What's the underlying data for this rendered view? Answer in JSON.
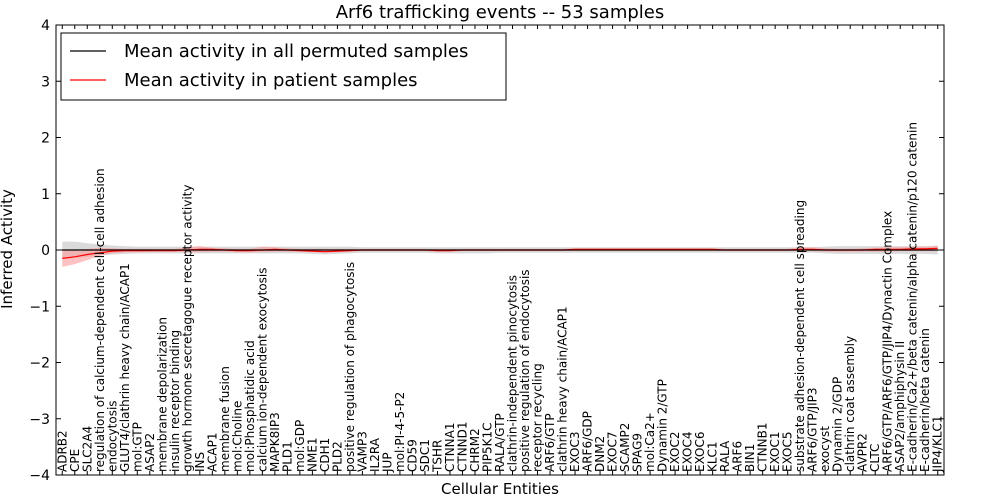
{
  "chart_data": {
    "type": "line",
    "title": "Arf6 trafficking events -- 53 samples",
    "xlabel": "Cellular Entities",
    "ylabel": "Inferred Activity",
    "ylim": [
      -4,
      4
    ],
    "yticks": [
      "4",
      "3",
      "2",
      "1",
      "0",
      "−1",
      "−2",
      "−3",
      "−4"
    ],
    "legend_position": "top-left",
    "grid": false,
    "categories": [
      "ADRB2",
      "CPE",
      "SLC2A4",
      "regulation of calcium-dependent cell-cell adhesion",
      "endocytosis",
      "GLUT4/clathrin heavy chain/ACAP1",
      "mol:GTP",
      "ASAP2",
      "membrane depolarization",
      "insulin receptor binding",
      "growth hormone secretagogue receptor activity",
      "INS",
      "ACAP1",
      "membrane fusion",
      "mol:Choline",
      "mol:Phosphatidic acid",
      "calcium ion-dependent exocytosis",
      "MAPK8IP3",
      "PLD1",
      "mol:GDP",
      "NME1",
      "CDH1",
      "PLD2",
      "positive regulation of phagocytosis",
      "VAMP3",
      "IL2RA",
      "JUP",
      "mol:PI-4-5-P2",
      "CD59",
      "SDC1",
      "TSHR",
      "CTNNA1",
      "CTNND1",
      "CHRM2",
      "PIP5K1C",
      "RALA/GTP",
      "clathrin-independent pinocytosis",
      "positive regulation of endocytosis",
      "receptor recycling",
      "ARF6/GTP",
      "clathrin heavy chain/ACAP1",
      "EXOC3",
      "ARF6/GDP",
      "DNM2",
      "EXOC7",
      "SCAMP2",
      "SPAG9",
      "mol:Ca2+",
      "Dynamin 2/GTP",
      "EXOC2",
      "EXOC4",
      "EXOC6",
      "KLC1",
      "RALA",
      "ARF6",
      "BIN1",
      "CTNNB1",
      "EXOC1",
      "EXOC5",
      "substrate adhesion-dependent cell spreading",
      "ARF6/GTP/JIP3",
      "exocyst",
      "Dynamin 2/GDP",
      "clathrin coat assembly",
      "AVPR2",
      "CLTC",
      "ARF6/GTP/ARF6/GTP/JIP4/Dynactin Complex",
      "ASAP2/amphiphysin II",
      "E-cadherin/Ca2+/beta catenin/alpha catenin/p120 catenin",
      "E-cadherin/beta catenin",
      "JIP4/KLC1"
    ],
    "series": [
      {
        "name": "Mean activity in all permuted samples",
        "color": "#000000",
        "values": [
          0,
          0,
          0,
          0,
          0,
          0,
          0,
          0,
          0,
          0,
          0,
          0,
          0,
          0,
          0,
          0,
          0,
          0,
          0,
          0,
          0,
          0,
          0,
          0,
          0,
          0,
          0,
          0,
          0,
          0,
          0,
          0,
          0,
          0,
          0,
          0,
          0,
          0,
          0,
          0,
          0,
          0,
          0,
          0,
          0,
          0,
          0,
          0,
          0,
          0,
          0,
          0,
          0,
          0,
          0,
          0,
          0,
          0,
          0,
          0,
          0,
          0,
          0,
          0,
          0,
          0,
          0,
          0,
          0,
          0,
          0
        ],
        "band_color": "#bbbbbb",
        "band_low": [
          -0.15,
          -0.15,
          -0.12,
          -0.1,
          -0.08,
          -0.07,
          -0.06,
          -0.06,
          -0.06,
          -0.06,
          -0.06,
          -0.06,
          -0.06,
          -0.06,
          -0.06,
          -0.06,
          -0.06,
          -0.06,
          -0.06,
          -0.06,
          -0.07,
          -0.08,
          -0.07,
          -0.06,
          -0.05,
          -0.05,
          -0.05,
          -0.05,
          -0.05,
          -0.05,
          -0.06,
          -0.06,
          -0.06,
          -0.06,
          -0.06,
          -0.05,
          -0.05,
          -0.05,
          -0.05,
          -0.05,
          -0.05,
          -0.05,
          -0.05,
          -0.05,
          -0.05,
          -0.05,
          -0.05,
          -0.05,
          -0.05,
          -0.05,
          -0.05,
          -0.05,
          -0.05,
          -0.05,
          -0.05,
          -0.05,
          -0.05,
          -0.05,
          -0.05,
          -0.05,
          -0.05,
          -0.06,
          -0.07,
          -0.07,
          -0.07,
          -0.07,
          -0.07,
          -0.07,
          -0.07,
          -0.07,
          -0.08
        ],
        "band_high": [
          0.15,
          0.15,
          0.12,
          0.1,
          0.08,
          0.07,
          0.06,
          0.06,
          0.06,
          0.06,
          0.06,
          0.06,
          0.06,
          0.06,
          0.06,
          0.06,
          0.06,
          0.06,
          0.06,
          0.06,
          0.06,
          0.06,
          0.06,
          0.06,
          0.05,
          0.05,
          0.05,
          0.05,
          0.05,
          0.05,
          0.05,
          0.05,
          0.05,
          0.05,
          0.05,
          0.05,
          0.05,
          0.05,
          0.05,
          0.05,
          0.05,
          0.05,
          0.05,
          0.05,
          0.05,
          0.05,
          0.05,
          0.05,
          0.05,
          0.05,
          0.05,
          0.05,
          0.05,
          0.05,
          0.05,
          0.05,
          0.05,
          0.05,
          0.05,
          0.05,
          0.05,
          0.06,
          0.07,
          0.07,
          0.07,
          0.07,
          0.07,
          0.07,
          0.07,
          0.07,
          0.08
        ]
      },
      {
        "name": "Mean activity in patient samples",
        "color": "#ff0000",
        "values": [
          -0.15,
          -0.12,
          -0.08,
          -0.05,
          -0.02,
          -0.01,
          -0.01,
          -0.01,
          -0.01,
          -0.01,
          0.0,
          0.01,
          0.01,
          0.0,
          -0.01,
          -0.01,
          0.0,
          0.01,
          0.0,
          -0.01,
          -0.02,
          -0.03,
          -0.02,
          -0.01,
          0.0,
          0.0,
          0.0,
          0.0,
          0.0,
          0.0,
          -0.01,
          -0.01,
          0.0,
          0.0,
          0.0,
          0.0,
          0.0,
          0.0,
          0.0,
          0.0,
          0.0,
          0.01,
          0.01,
          0.01,
          0.01,
          0.01,
          0.01,
          0.01,
          0.01,
          0.01,
          0.01,
          0.01,
          0.01,
          0.0,
          0.0,
          0.0,
          0.0,
          0.0,
          0.0,
          0.01,
          0.01,
          0.0,
          0.0,
          0.0,
          0.0,
          0.01,
          0.01,
          0.01,
          0.02,
          0.02,
          0.03
        ],
        "band_color": "#ff9999",
        "band_low": [
          -0.3,
          -0.25,
          -0.18,
          -0.1,
          -0.06,
          -0.04,
          -0.04,
          -0.03,
          -0.03,
          -0.03,
          -0.04,
          -0.04,
          -0.03,
          -0.03,
          -0.04,
          -0.04,
          -0.04,
          -0.03,
          -0.03,
          -0.03,
          -0.04,
          -0.05,
          -0.04,
          -0.03,
          -0.02,
          -0.02,
          -0.02,
          -0.02,
          -0.02,
          -0.02,
          -0.03,
          -0.03,
          -0.02,
          -0.02,
          -0.02,
          -0.02,
          -0.02,
          -0.02,
          -0.02,
          -0.02,
          -0.02,
          -0.02,
          -0.02,
          -0.02,
          -0.02,
          -0.02,
          -0.02,
          -0.02,
          -0.02,
          -0.02,
          -0.02,
          -0.02,
          -0.02,
          -0.02,
          -0.02,
          -0.02,
          -0.02,
          -0.02,
          -0.02,
          -0.02,
          -0.02,
          -0.03,
          -0.03,
          -0.03,
          -0.03,
          -0.03,
          -0.03,
          -0.02,
          -0.02,
          -0.02,
          -0.02
        ],
        "band_high": [
          0.0,
          0.0,
          0.02,
          0.04,
          0.03,
          0.02,
          0.02,
          0.02,
          0.02,
          0.02,
          0.05,
          0.07,
          0.04,
          0.03,
          0.02,
          0.02,
          0.06,
          0.05,
          0.03,
          0.02,
          0.02,
          0.02,
          0.02,
          0.02,
          0.02,
          0.02,
          0.02,
          0.02,
          0.02,
          0.02,
          0.02,
          0.02,
          0.02,
          0.02,
          0.02,
          0.02,
          0.02,
          0.02,
          0.02,
          0.02,
          0.02,
          0.03,
          0.03,
          0.03,
          0.03,
          0.03,
          0.03,
          0.03,
          0.03,
          0.03,
          0.03,
          0.03,
          0.03,
          0.02,
          0.02,
          0.02,
          0.02,
          0.02,
          0.02,
          0.05,
          0.05,
          0.03,
          0.02,
          0.02,
          0.03,
          0.04,
          0.05,
          0.05,
          0.06,
          0.06,
          0.07
        ]
      }
    ]
  }
}
